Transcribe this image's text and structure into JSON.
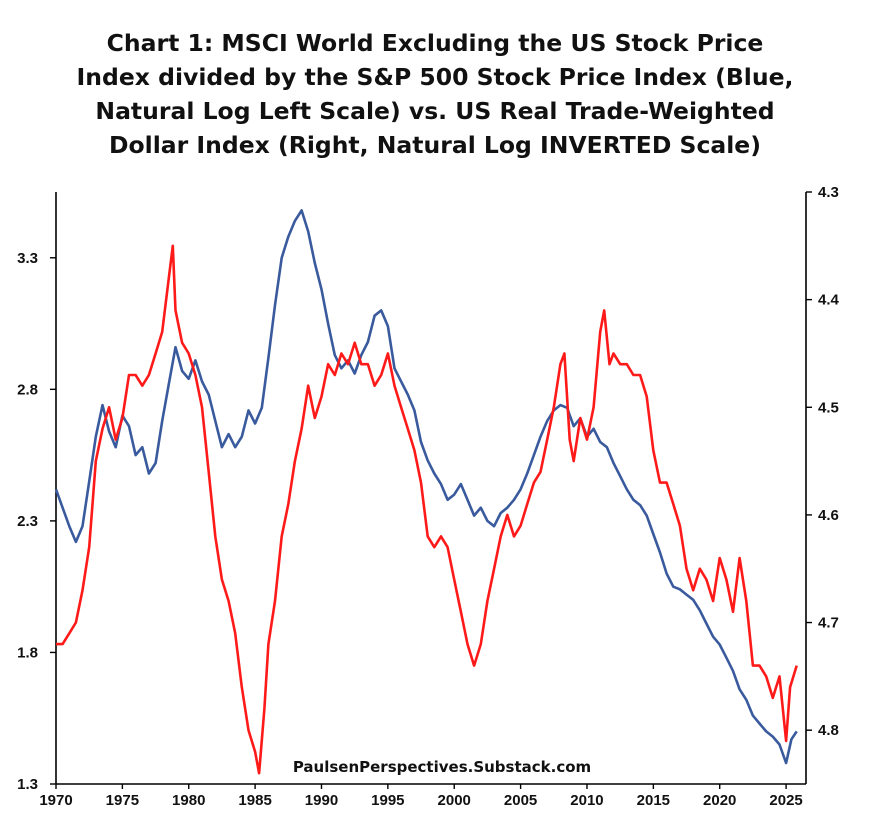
{
  "chart_data": {
    "type": "line",
    "title_lines": [
      "Chart 1: MSCI World Excluding the US Stock Price",
      "Index divided by the S&P 500 Stock Price Index  (Blue,",
      "Natural Log Left Scale) vs. US Real Trade-Weighted",
      "Dollar Index (Right, Natural Log INVERTED Scale)"
    ],
    "annotation": "PaulsenPerspectives.Substack.com",
    "x_ticks": [
      "1970",
      "1975",
      "1980",
      "1985",
      "1990",
      "1995",
      "2000",
      "2005",
      "2010",
      "2015",
      "2020",
      "2025"
    ],
    "xlim": [
      1970,
      2026.5
    ],
    "left_axis": {
      "ylim": [
        1.3,
        3.55
      ],
      "ticks": [
        "1.3",
        "1.8",
        "2.3",
        "2.8",
        "3.3"
      ]
    },
    "right_axis": {
      "ylim": [
        4.3,
        4.85
      ],
      "inverted": true,
      "ticks": [
        "4.3",
        "4.4",
        "4.5",
        "4.6",
        "4.7",
        "4.8"
      ]
    },
    "series": [
      {
        "color": "#3a5a9e",
        "axis": "left",
        "points": [
          [
            1970.0,
            2.42
          ],
          [
            1970.5,
            2.35
          ],
          [
            1971.0,
            2.28
          ],
          [
            1971.5,
            2.22
          ],
          [
            1972.0,
            2.28
          ],
          [
            1972.5,
            2.45
          ],
          [
            1973.0,
            2.62
          ],
          [
            1973.5,
            2.74
          ],
          [
            1974.0,
            2.64
          ],
          [
            1974.5,
            2.58
          ],
          [
            1975.0,
            2.7
          ],
          [
            1975.5,
            2.66
          ],
          [
            1976.0,
            2.55
          ],
          [
            1976.5,
            2.58
          ],
          [
            1977.0,
            2.48
          ],
          [
            1977.5,
            2.52
          ],
          [
            1978.0,
            2.68
          ],
          [
            1978.5,
            2.82
          ],
          [
            1979.0,
            2.96
          ],
          [
            1979.5,
            2.87
          ],
          [
            1980.0,
            2.84
          ],
          [
            1980.5,
            2.91
          ],
          [
            1981.0,
            2.83
          ],
          [
            1981.5,
            2.78
          ],
          [
            1982.0,
            2.68
          ],
          [
            1982.5,
            2.58
          ],
          [
            1983.0,
            2.63
          ],
          [
            1983.5,
            2.58
          ],
          [
            1984.0,
            2.62
          ],
          [
            1984.5,
            2.72
          ],
          [
            1985.0,
            2.67
          ],
          [
            1985.5,
            2.73
          ],
          [
            1986.0,
            2.92
          ],
          [
            1986.5,
            3.12
          ],
          [
            1987.0,
            3.3
          ],
          [
            1987.5,
            3.38
          ],
          [
            1988.0,
            3.44
          ],
          [
            1988.5,
            3.48
          ],
          [
            1989.0,
            3.4
          ],
          [
            1989.5,
            3.28
          ],
          [
            1990.0,
            3.18
          ],
          [
            1990.5,
            3.05
          ],
          [
            1991.0,
            2.93
          ],
          [
            1991.5,
            2.88
          ],
          [
            1992.0,
            2.91
          ],
          [
            1992.5,
            2.86
          ],
          [
            1993.0,
            2.93
          ],
          [
            1993.5,
            2.98
          ],
          [
            1994.0,
            3.08
          ],
          [
            1994.5,
            3.1
          ],
          [
            1995.0,
            3.04
          ],
          [
            1995.5,
            2.88
          ],
          [
            1996.0,
            2.83
          ],
          [
            1996.5,
            2.78
          ],
          [
            1997.0,
            2.72
          ],
          [
            1997.5,
            2.6
          ],
          [
            1998.0,
            2.53
          ],
          [
            1998.5,
            2.48
          ],
          [
            1999.0,
            2.44
          ],
          [
            1999.5,
            2.38
          ],
          [
            2000.0,
            2.4
          ],
          [
            2000.5,
            2.44
          ],
          [
            2001.0,
            2.38
          ],
          [
            2001.5,
            2.32
          ],
          [
            2002.0,
            2.35
          ],
          [
            2002.5,
            2.3
          ],
          [
            2003.0,
            2.28
          ],
          [
            2003.5,
            2.33
          ],
          [
            2004.0,
            2.35
          ],
          [
            2004.5,
            2.38
          ],
          [
            2005.0,
            2.42
          ],
          [
            2005.5,
            2.48
          ],
          [
            2006.0,
            2.55
          ],
          [
            2006.5,
            2.62
          ],
          [
            2007.0,
            2.68
          ],
          [
            2007.5,
            2.72
          ],
          [
            2008.0,
            2.74
          ],
          [
            2008.5,
            2.73
          ],
          [
            2009.0,
            2.66
          ],
          [
            2009.5,
            2.69
          ],
          [
            2010.0,
            2.62
          ],
          [
            2010.5,
            2.65
          ],
          [
            2011.0,
            2.6
          ],
          [
            2011.5,
            2.58
          ],
          [
            2012.0,
            2.52
          ],
          [
            2012.5,
            2.47
          ],
          [
            2013.0,
            2.42
          ],
          [
            2013.5,
            2.38
          ],
          [
            2014.0,
            2.36
          ],
          [
            2014.5,
            2.32
          ],
          [
            2015.0,
            2.25
          ],
          [
            2015.5,
            2.18
          ],
          [
            2016.0,
            2.1
          ],
          [
            2016.5,
            2.05
          ],
          [
            2017.0,
            2.04
          ],
          [
            2017.5,
            2.02
          ],
          [
            2018.0,
            2.0
          ],
          [
            2018.5,
            1.96
          ],
          [
            2019.0,
            1.91
          ],
          [
            2019.5,
            1.86
          ],
          [
            2020.0,
            1.83
          ],
          [
            2020.5,
            1.78
          ],
          [
            2021.0,
            1.73
          ],
          [
            2021.5,
            1.66
          ],
          [
            2022.0,
            1.62
          ],
          [
            2022.5,
            1.56
          ],
          [
            2023.0,
            1.53
          ],
          [
            2023.5,
            1.5
          ],
          [
            2024.0,
            1.48
          ],
          [
            2024.5,
            1.45
          ],
          [
            2025.0,
            1.38
          ],
          [
            2025.4,
            1.47
          ],
          [
            2025.8,
            1.5
          ]
        ]
      },
      {
        "color": "#ff1a1a",
        "axis": "right",
        "points": [
          [
            1970.0,
            4.72
          ],
          [
            1970.5,
            4.72
          ],
          [
            1971.0,
            4.71
          ],
          [
            1971.5,
            4.7
          ],
          [
            1972.0,
            4.67
          ],
          [
            1972.5,
            4.63
          ],
          [
            1973.0,
            4.55
          ],
          [
            1973.5,
            4.52
          ],
          [
            1974.0,
            4.5
          ],
          [
            1974.5,
            4.53
          ],
          [
            1975.0,
            4.51
          ],
          [
            1975.5,
            4.47
          ],
          [
            1976.0,
            4.47
          ],
          [
            1976.5,
            4.48
          ],
          [
            1977.0,
            4.47
          ],
          [
            1977.5,
            4.45
          ],
          [
            1978.0,
            4.43
          ],
          [
            1978.5,
            4.38
          ],
          [
            1978.8,
            4.35
          ],
          [
            1979.0,
            4.41
          ],
          [
            1979.5,
            4.44
          ],
          [
            1980.0,
            4.45
          ],
          [
            1980.5,
            4.47
          ],
          [
            1981.0,
            4.5
          ],
          [
            1981.5,
            4.56
          ],
          [
            1982.0,
            4.62
          ],
          [
            1982.5,
            4.66
          ],
          [
            1983.0,
            4.68
          ],
          [
            1983.5,
            4.71
          ],
          [
            1984.0,
            4.76
          ],
          [
            1984.5,
            4.8
          ],
          [
            1985.0,
            4.82
          ],
          [
            1985.3,
            4.84
          ],
          [
            1985.7,
            4.78
          ],
          [
            1986.0,
            4.72
          ],
          [
            1986.5,
            4.68
          ],
          [
            1987.0,
            4.62
          ],
          [
            1987.5,
            4.59
          ],
          [
            1988.0,
            4.55
          ],
          [
            1988.5,
            4.52
          ],
          [
            1989.0,
            4.48
          ],
          [
            1989.5,
            4.51
          ],
          [
            1990.0,
            4.49
          ],
          [
            1990.5,
            4.46
          ],
          [
            1991.0,
            4.47
          ],
          [
            1991.5,
            4.45
          ],
          [
            1992.0,
            4.46
          ],
          [
            1992.5,
            4.44
          ],
          [
            1993.0,
            4.46
          ],
          [
            1993.5,
            4.46
          ],
          [
            1994.0,
            4.48
          ],
          [
            1994.5,
            4.47
          ],
          [
            1995.0,
            4.45
          ],
          [
            1995.5,
            4.48
          ],
          [
            1996.0,
            4.5
          ],
          [
            1996.5,
            4.52
          ],
          [
            1997.0,
            4.54
          ],
          [
            1997.5,
            4.57
          ],
          [
            1998.0,
            4.62
          ],
          [
            1998.5,
            4.63
          ],
          [
            1999.0,
            4.62
          ],
          [
            1999.5,
            4.63
          ],
          [
            2000.0,
            4.66
          ],
          [
            2000.5,
            4.69
          ],
          [
            2001.0,
            4.72
          ],
          [
            2001.5,
            4.74
          ],
          [
            2002.0,
            4.72
          ],
          [
            2002.5,
            4.68
          ],
          [
            2003.0,
            4.65
          ],
          [
            2003.5,
            4.62
          ],
          [
            2004.0,
            4.6
          ],
          [
            2004.5,
            4.62
          ],
          [
            2005.0,
            4.61
          ],
          [
            2005.5,
            4.59
          ],
          [
            2006.0,
            4.57
          ],
          [
            2006.5,
            4.56
          ],
          [
            2007.0,
            4.53
          ],
          [
            2007.5,
            4.5
          ],
          [
            2008.0,
            4.46
          ],
          [
            2008.3,
            4.45
          ],
          [
            2008.7,
            4.53
          ],
          [
            2009.0,
            4.55
          ],
          [
            2009.5,
            4.51
          ],
          [
            2010.0,
            4.53
          ],
          [
            2010.5,
            4.5
          ],
          [
            2011.0,
            4.43
          ],
          [
            2011.3,
            4.41
          ],
          [
            2011.7,
            4.46
          ],
          [
            2012.0,
            4.45
          ],
          [
            2012.5,
            4.46
          ],
          [
            2013.0,
            4.46
          ],
          [
            2013.5,
            4.47
          ],
          [
            2014.0,
            4.47
          ],
          [
            2014.5,
            4.49
          ],
          [
            2015.0,
            4.54
          ],
          [
            2015.5,
            4.57
          ],
          [
            2016.0,
            4.57
          ],
          [
            2016.5,
            4.59
          ],
          [
            2017.0,
            4.61
          ],
          [
            2017.5,
            4.65
          ],
          [
            2018.0,
            4.67
          ],
          [
            2018.5,
            4.65
          ],
          [
            2019.0,
            4.66
          ],
          [
            2019.5,
            4.68
          ],
          [
            2020.0,
            4.64
          ],
          [
            2020.5,
            4.66
          ],
          [
            2021.0,
            4.69
          ],
          [
            2021.5,
            4.64
          ],
          [
            2022.0,
            4.68
          ],
          [
            2022.5,
            4.74
          ],
          [
            2023.0,
            4.74
          ],
          [
            2023.5,
            4.75
          ],
          [
            2024.0,
            4.77
          ],
          [
            2024.5,
            4.75
          ],
          [
            2025.0,
            4.81
          ],
          [
            2025.3,
            4.76
          ],
          [
            2025.8,
            4.74
          ]
        ]
      }
    ]
  }
}
